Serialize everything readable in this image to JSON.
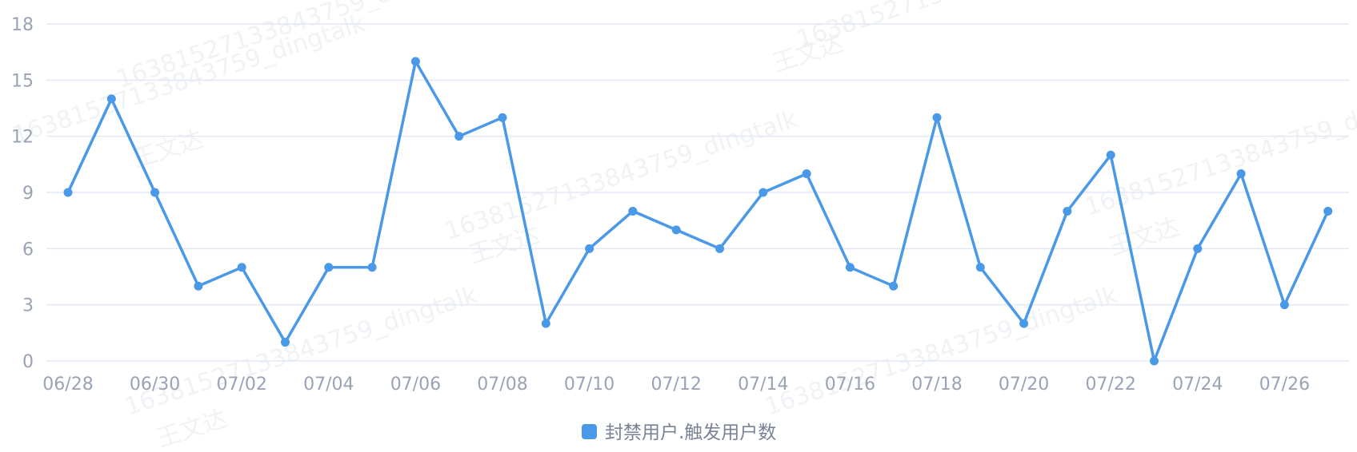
{
  "chart_data": {
    "type": "line",
    "title": "",
    "xlabel": "",
    "ylabel": "",
    "ylim": [
      0,
      18
    ],
    "yticks": [
      0,
      3,
      6,
      9,
      12,
      15,
      18
    ],
    "x": [
      "06/28",
      "06/29",
      "06/30",
      "07/01",
      "07/02",
      "07/03",
      "07/04",
      "07/05",
      "07/06",
      "07/07",
      "07/08",
      "07/09",
      "07/10",
      "07/11",
      "07/12",
      "07/13",
      "07/14",
      "07/15",
      "07/16",
      "07/17",
      "07/18",
      "07/19",
      "07/20",
      "07/21",
      "07/22",
      "07/23",
      "07/24",
      "07/25",
      "07/26",
      "07/27"
    ],
    "xtick_labels": [
      "06/28",
      "06/30",
      "07/02",
      "07/04",
      "07/06",
      "07/08",
      "07/10",
      "07/12",
      "07/14",
      "07/16",
      "07/18",
      "07/20",
      "07/22",
      "07/24",
      "07/26"
    ],
    "series": [
      {
        "name": "封禁用户.触发用户数",
        "values": [
          9,
          14,
          9,
          4,
          5,
          1,
          5,
          5,
          16,
          12,
          13,
          2,
          6,
          8,
          7,
          6,
          9,
          10,
          5,
          4,
          13,
          5,
          2,
          8,
          11,
          0,
          6,
          10,
          3,
          8
        ]
      }
    ],
    "grid": true,
    "legend": "bottom-center",
    "colors": {
      "series": "#4a98e8",
      "grid": "#e3e8f5",
      "tick": "#9aa3b5"
    }
  },
  "watermarks": [
    "16381527133843759_dingtalk",
    "王文达"
  ]
}
